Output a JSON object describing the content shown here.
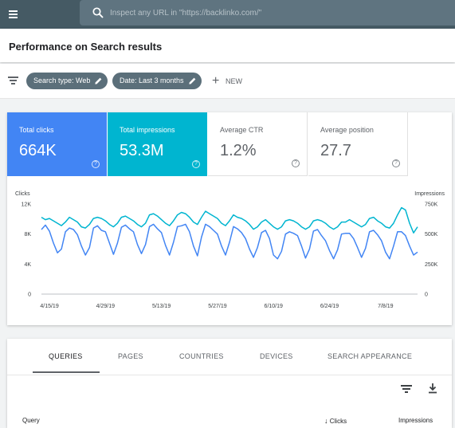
{
  "topbar": {
    "menu_icon": "hamburger-menu-icon",
    "search_icon": "search-icon",
    "search_placeholder": "Inspect any URL in \"https://backlinko.com/\""
  },
  "page": {
    "title": "Performance on Search results"
  },
  "filters": {
    "filter_icon": "filter-icon",
    "chips": [
      {
        "label": "Search type: Web",
        "icon": "pencil-icon"
      },
      {
        "label": "Date: Last 3 months",
        "icon": "pencil-icon"
      }
    ],
    "new_label": "NEW",
    "new_icon": "plus-icon"
  },
  "metrics": [
    {
      "label": "Total clicks",
      "value": "664K",
      "selected": true,
      "color": "#4285f4"
    },
    {
      "label": "Total impressions",
      "value": "53.3M",
      "selected": true,
      "color": "#00b5d0"
    },
    {
      "label": "Average CTR",
      "value": "1.2%",
      "selected": false
    },
    {
      "label": "Average position",
      "value": "27.7",
      "selected": false
    }
  ],
  "chart_data": {
    "type": "line",
    "left_axis": {
      "label": "Clicks",
      "ticks": [
        "12K",
        "8K",
        "4K",
        "0"
      ],
      "range": [
        0,
        12000
      ]
    },
    "right_axis": {
      "label": "Impressions",
      "ticks": [
        "750K",
        "500K",
        "250K",
        "0"
      ],
      "range": [
        0,
        750000
      ]
    },
    "x_ticks": [
      "4/15/19",
      "4/29/19",
      "5/13/19",
      "5/27/19",
      "6/10/19",
      "6/24/19",
      "7/8/19"
    ],
    "x_tick_index": [
      2,
      16,
      30,
      44,
      58,
      72,
      86
    ],
    "grid": false,
    "series": [
      {
        "name": "Clicks",
        "axis": "left",
        "color": "#4285f4",
        "values": [
          8600,
          9200,
          8400,
          6800,
          5500,
          6000,
          8300,
          8800,
          8600,
          7900,
          6400,
          5200,
          6200,
          8800,
          9100,
          8500,
          8300,
          6800,
          5300,
          6800,
          8900,
          9200,
          8700,
          8300,
          6600,
          5400,
          6600,
          9000,
          9300,
          8700,
          8200,
          6500,
          5200,
          6900,
          9000,
          9100,
          9300,
          8300,
          6400,
          5100,
          7600,
          9300,
          9000,
          8500,
          8000,
          6400,
          5200,
          6900,
          9000,
          8700,
          8200,
          7400,
          6000,
          4900,
          6200,
          8200,
          8500,
          7400,
          5200,
          4700,
          5700,
          8000,
          8300,
          8100,
          7800,
          6400,
          4800,
          6000,
          8400,
          8600,
          7800,
          7100,
          5800,
          4700,
          5900,
          8000,
          8100,
          8100,
          7400,
          6200,
          4900,
          6100,
          8300,
          8500,
          7900,
          7100,
          5600,
          4700,
          6400,
          8300,
          8300,
          7800,
          6400,
          5200,
          5600
        ]
      },
      {
        "name": "Impressions",
        "axis": "right",
        "color": "#00b5d0",
        "values": [
          640000,
          620000,
          630000,
          610000,
          590000,
          570000,
          600000,
          640000,
          620000,
          600000,
          560000,
          550000,
          580000,
          630000,
          640000,
          630000,
          610000,
          580000,
          560000,
          590000,
          640000,
          650000,
          630000,
          610000,
          580000,
          560000,
          590000,
          660000,
          670000,
          650000,
          620000,
          590000,
          570000,
          610000,
          660000,
          680000,
          670000,
          640000,
          600000,
          580000,
          640000,
          690000,
          670000,
          650000,
          630000,
          590000,
          570000,
          610000,
          660000,
          640000,
          630000,
          610000,
          580000,
          540000,
          560000,
          600000,
          620000,
          590000,
          560000,
          540000,
          560000,
          610000,
          620000,
          610000,
          590000,
          560000,
          540000,
          560000,
          610000,
          620000,
          610000,
          590000,
          560000,
          540000,
          560000,
          600000,
          600000,
          620000,
          600000,
          580000,
          560000,
          580000,
          630000,
          640000,
          610000,
          590000,
          560000,
          550000,
          590000,
          660000,
          720000,
          700000,
          590000,
          510000,
          560000
        ]
      }
    ]
  },
  "tabs": [
    {
      "label": "QUERIES",
      "active": true
    },
    {
      "label": "PAGES",
      "active": false
    },
    {
      "label": "COUNTRIES",
      "active": false
    },
    {
      "label": "DEVICES",
      "active": false
    },
    {
      "label": "SEARCH APPEARANCE",
      "active": false
    }
  ],
  "table_tools": {
    "filter_icon": "filter-icon",
    "download_icon": "download-icon"
  },
  "table": {
    "columns": [
      {
        "label": "Query"
      },
      {
        "label": "Clicks",
        "sorted": "descending",
        "sort_icon": "arrow-down-icon"
      },
      {
        "label": "Impressions"
      }
    ]
  }
}
